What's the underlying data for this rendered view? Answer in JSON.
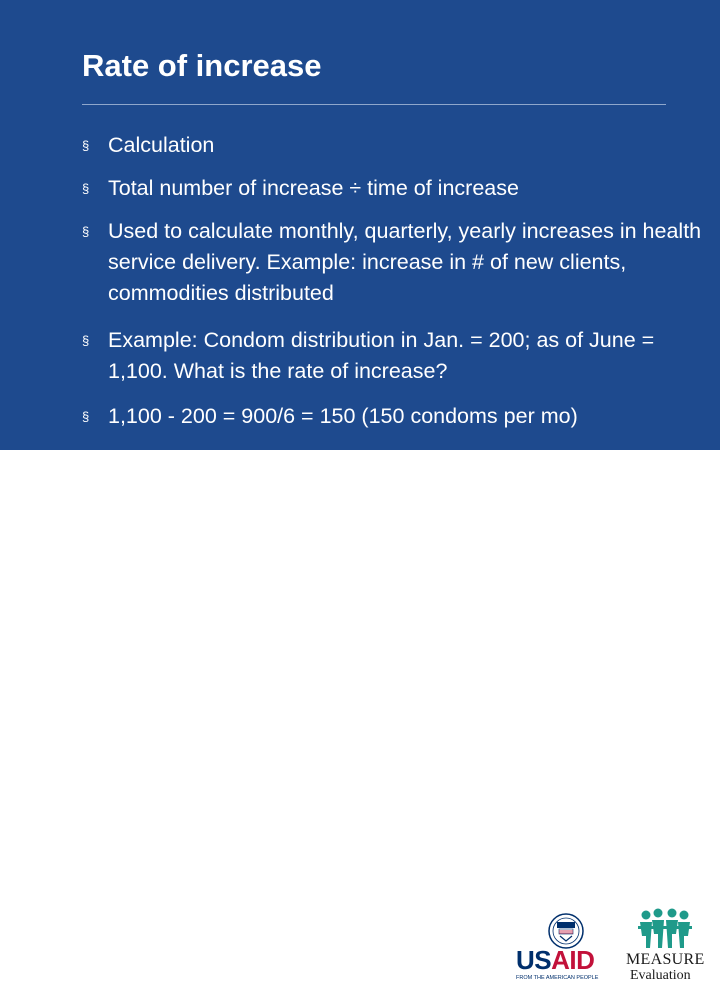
{
  "slide": {
    "title": "Rate of increase",
    "bullet_marker": "§",
    "bullets": [
      "Calculation",
      "Total number of increase ÷ time of increase",
      "Used to calculate monthly, quarterly, yearly increases in health service delivery. Example: increase in # of new clients, commodities distributed",
      "Example: Condom distribution in Jan. = 200; as of June = 1,100. What is the rate of increase?",
      "1,100 - 200 = 900/6 = 150 (150 condoms per mo)"
    ]
  },
  "footer": {
    "usaid": {
      "logo_us": "US",
      "logo_aid": "AID",
      "tagline": "FROM THE AMERICAN PEOPLE",
      "seal_icon": "usaid-seal-icon"
    },
    "measure": {
      "logo_word": "MEASURE",
      "logo_sub": "Evaluation",
      "people_icon": "measure-people-icon"
    }
  },
  "colors": {
    "background": "#1e4a8e",
    "text": "#ffffff",
    "usaid_blue": "#002f6c",
    "usaid_red": "#c2113a",
    "measure_teal": "#1f9a8a"
  }
}
